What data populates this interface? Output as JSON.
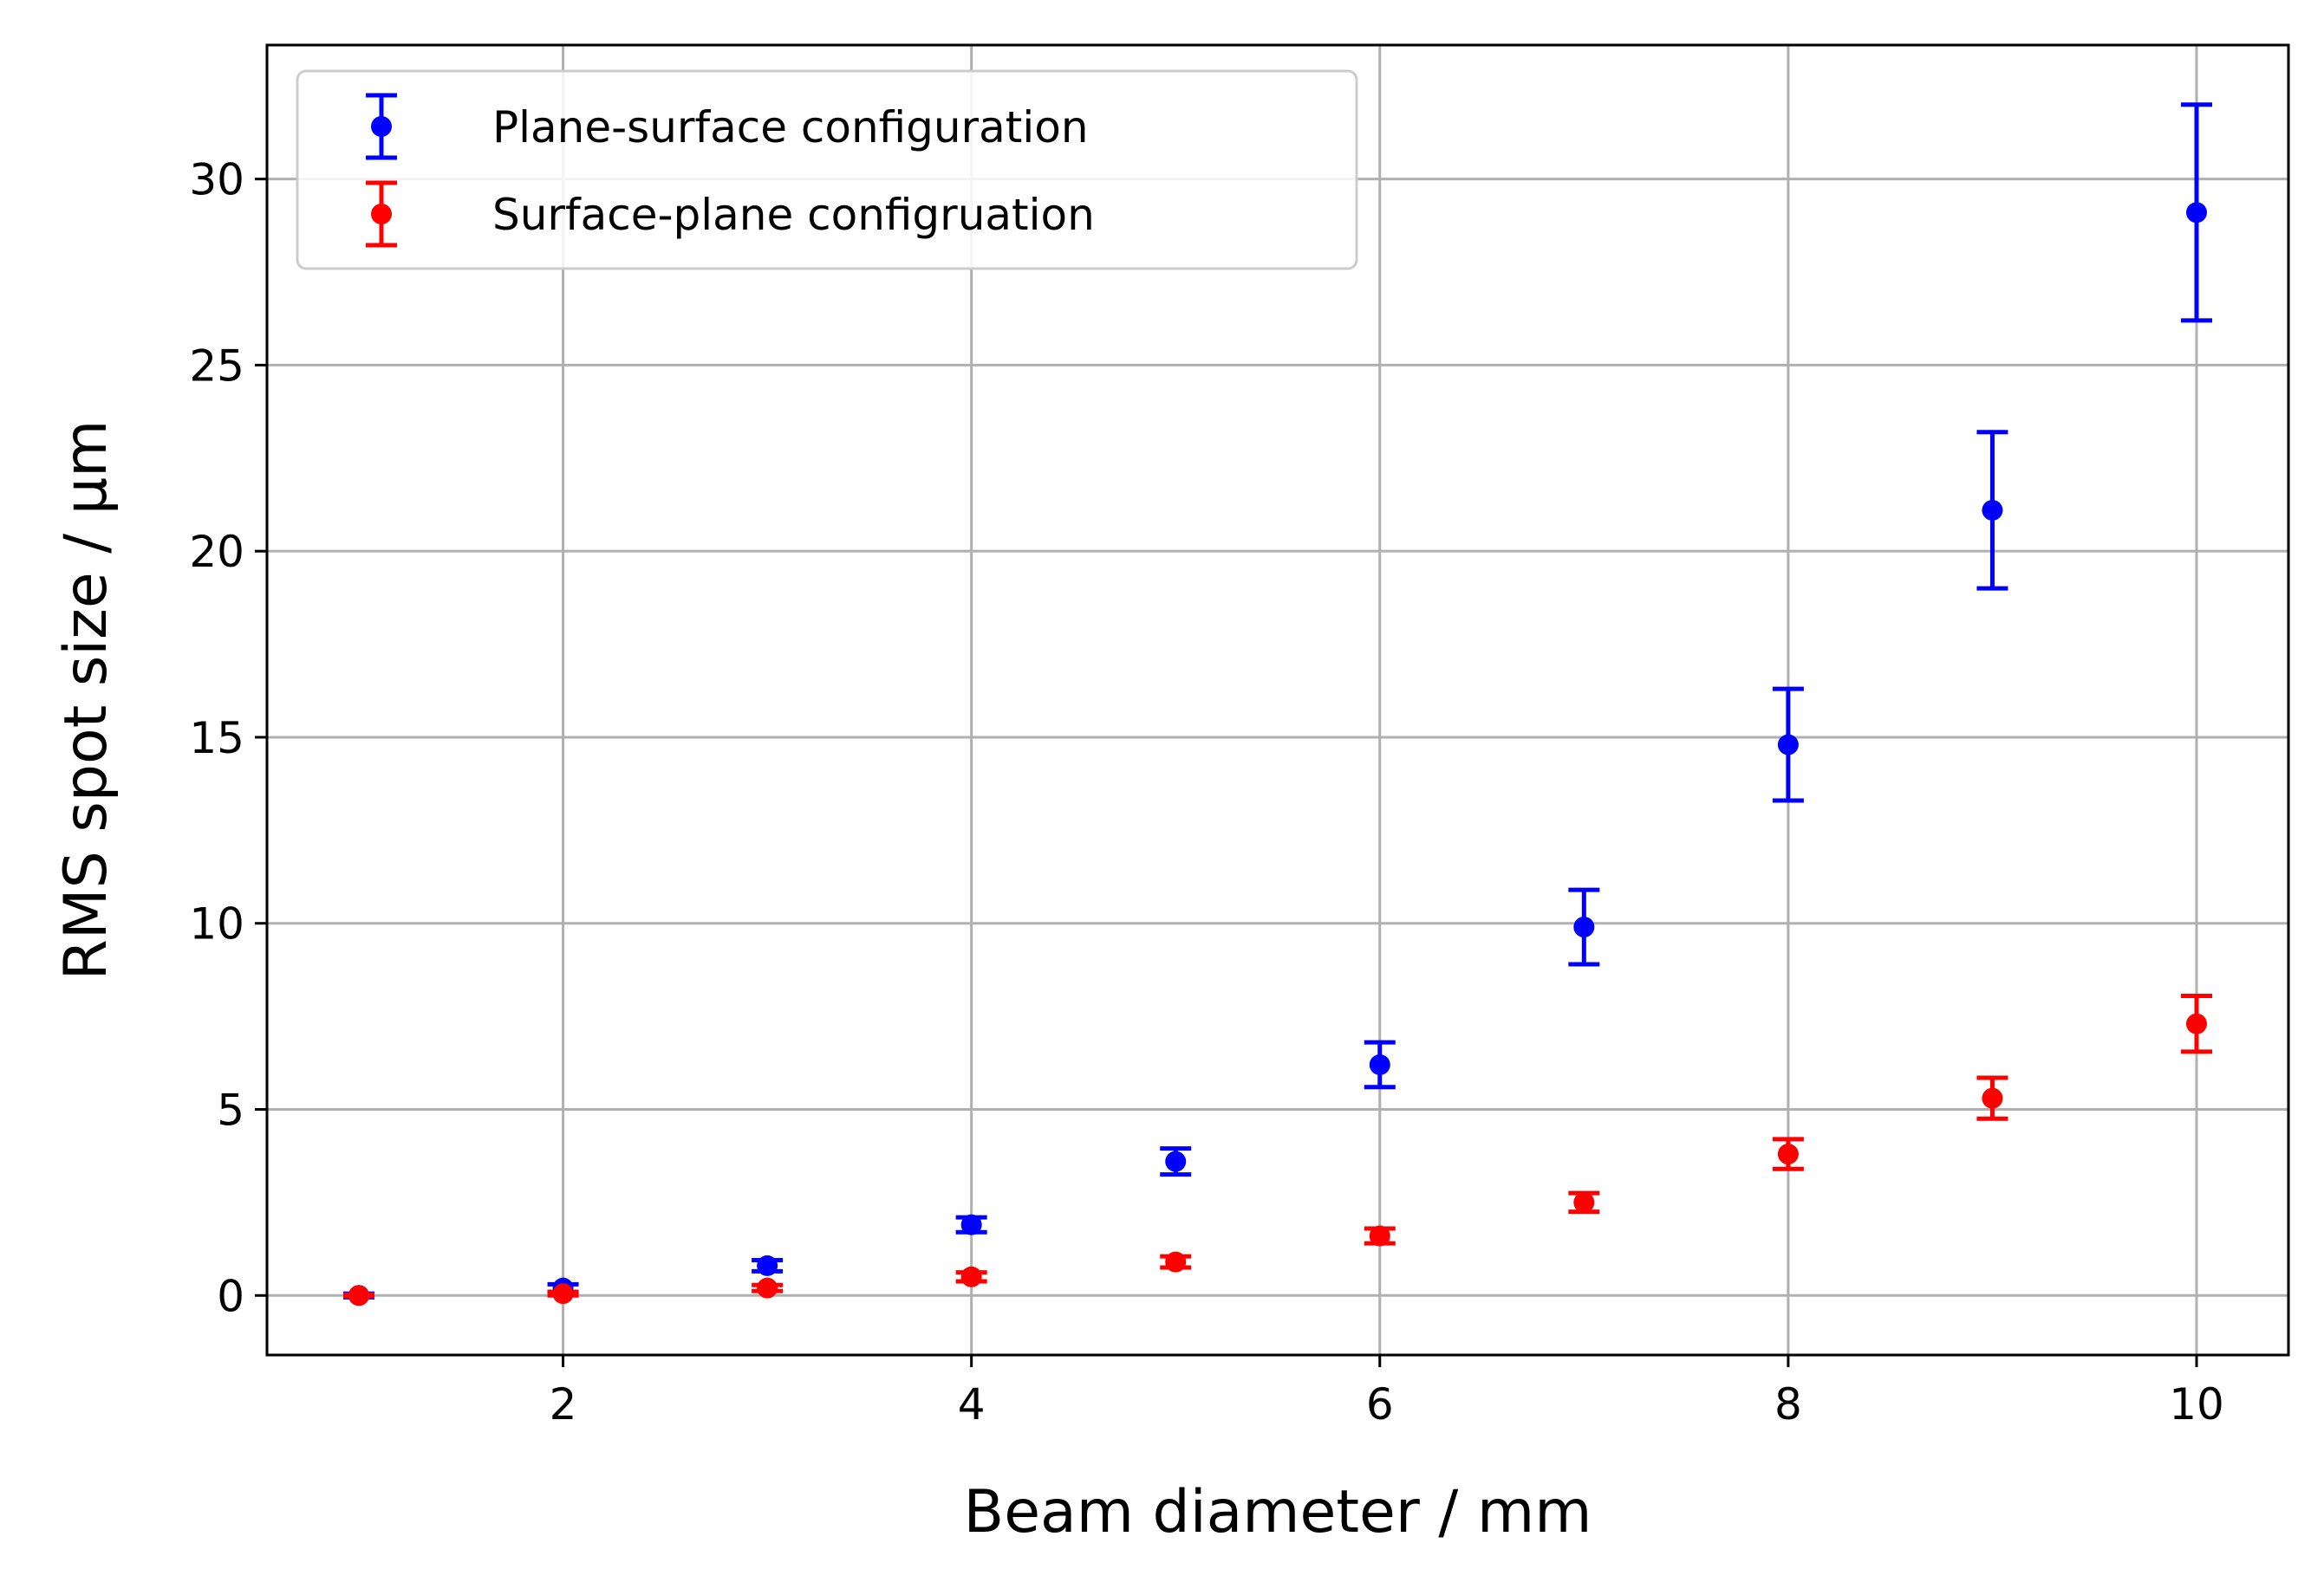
{
  "chart_data": {
    "type": "scatter",
    "title": "",
    "xlabel": "Beam diameter / mm",
    "ylabel": "RMS spot size / μm",
    "xlim": [
      0.55,
      10.45
    ],
    "ylim": [
      -1.6,
      33.6
    ],
    "xticks": [
      2,
      4,
      6,
      8,
      10
    ],
    "xtick_labels": [
      "2",
      "4",
      "6",
      "8",
      "10"
    ],
    "yticks": [
      0,
      5,
      10,
      15,
      20,
      25,
      30
    ],
    "ytick_labels": [
      "0",
      "5",
      "10",
      "15",
      "20",
      "25",
      "30"
    ],
    "grid": true,
    "legend_position": "top-left",
    "series": [
      {
        "name": "Plane-surface configuration",
        "color": "#0000ff",
        "marker": "circle-with-errorbars",
        "x": [
          1,
          2,
          3,
          4,
          5,
          6,
          7,
          8,
          9,
          10
        ],
        "y": [
          0.0,
          0.2,
          0.8,
          1.9,
          3.6,
          6.2,
          9.9,
          14.8,
          21.1,
          29.1
        ],
        "yerr": [
          0.05,
          0.1,
          0.15,
          0.2,
          0.35,
          0.6,
          1.0,
          1.5,
          2.1,
          2.9
        ]
      },
      {
        "name": "Surface-plane configruation",
        "color": "#ff0000",
        "marker": "circle-with-errorbars",
        "x": [
          1,
          2,
          3,
          4,
          5,
          6,
          7,
          8,
          9,
          10
        ],
        "y": [
          0.0,
          0.05,
          0.2,
          0.5,
          0.9,
          1.6,
          2.5,
          3.8,
          5.3,
          7.3
        ],
        "yerr": [
          0.02,
          0.05,
          0.08,
          0.12,
          0.15,
          0.2,
          0.25,
          0.4,
          0.55,
          0.75
        ]
      }
    ]
  }
}
